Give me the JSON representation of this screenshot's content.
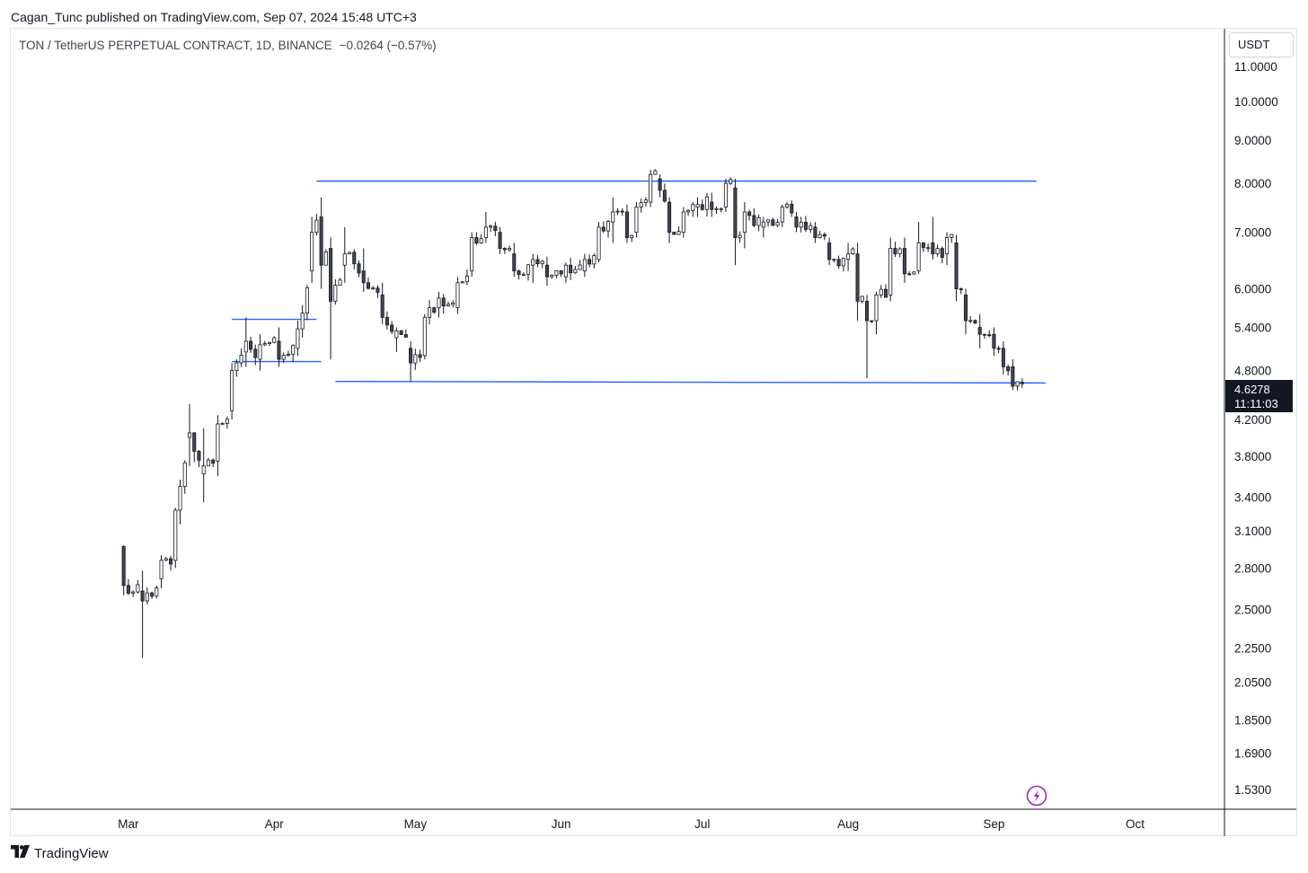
{
  "header": {
    "published_by": "Cagan_Tunc published on TradingView.com, Sep 07, 2024 15:48 UTC+3"
  },
  "symbol": {
    "title": "TON / TetherUS PERPETUAL CONTRACT, 1D, BINANCE",
    "change": "−0.0264 (−0.57%)"
  },
  "currency_label": "USDT",
  "last_price": {
    "value": "4.6278",
    "countdown": "11:11:03"
  },
  "footer": {
    "brand": "TradingView"
  },
  "colors": {
    "candle_up": "#ffffff",
    "candle_down": "#434651",
    "candle_border": "#131722",
    "trendline": "#2962ff",
    "badge_bg": "#131722",
    "flash_icon": "#9c27b0"
  },
  "icons": [
    "tradingview-logo-icon",
    "flash-icon"
  ],
  "chart_data": {
    "type": "candlestick",
    "title": "TON / TetherUS PERPETUAL CONTRACT, 1D, BINANCE",
    "y_scale": "log",
    "ylim": [
      1.45,
      12.2
    ],
    "y_ticks": [
      11.0,
      10.0,
      9.0,
      8.0,
      7.0,
      6.0,
      5.4,
      4.8,
      4.2,
      3.8,
      3.4,
      3.1,
      2.8,
      2.5,
      2.25,
      2.05,
      1.85,
      1.69,
      1.53
    ],
    "y_tick_labels": [
      "11.0000",
      "10.0000",
      "9.0000",
      "8.0000",
      "7.0000",
      "6.0000",
      "5.4000",
      "4.8000",
      "4.2000",
      "3.8000",
      "3.4000",
      "3.1000",
      "2.8000",
      "2.5000",
      "2.2500",
      "2.0500",
      "1.8500",
      "1.6900",
      "1.5300"
    ],
    "x_range": [
      "2024-02-05",
      "2024-10-20"
    ],
    "x_ticks": [
      {
        "date": "2024-03-01",
        "label": "Mar"
      },
      {
        "date": "2024-04-01",
        "label": "Apr"
      },
      {
        "date": "2024-05-01",
        "label": "May"
      },
      {
        "date": "2024-06-01",
        "label": "Jun"
      },
      {
        "date": "2024-07-01",
        "label": "Jul"
      },
      {
        "date": "2024-08-01",
        "label": "Aug"
      },
      {
        "date": "2024-09-01",
        "label": "Sep"
      },
      {
        "date": "2024-10-01",
        "label": "Oct"
      }
    ],
    "anchors": [
      {
        "date": "2024-02-29",
        "o": 2.97,
        "h": 2.98,
        "l": 2.6,
        "c": 2.67
      },
      {
        "date": "2024-03-04",
        "o": 2.63,
        "h": 2.78,
        "l": 2.19,
        "c": 2.56
      },
      {
        "date": "2024-03-08",
        "o": 2.72,
        "h": 2.9,
        "l": 2.65,
        "c": 2.86
      },
      {
        "date": "2024-03-11",
        "o": 2.86,
        "h": 3.3,
        "l": 2.8,
        "c": 3.28
      },
      {
        "date": "2024-03-14",
        "o": 4.0,
        "h": 4.38,
        "l": 3.7,
        "c": 4.05
      },
      {
        "date": "2024-03-17",
        "o": 3.62,
        "h": 4.1,
        "l": 3.35,
        "c": 3.7
      },
      {
        "date": "2024-03-20",
        "o": 3.75,
        "h": 4.25,
        "l": 3.6,
        "c": 4.15
      },
      {
        "date": "2024-03-23",
        "o": 4.3,
        "h": 4.9,
        "l": 4.2,
        "c": 4.8
      },
      {
        "date": "2024-03-26",
        "o": 5.05,
        "h": 5.55,
        "l": 4.85,
        "c": 5.2
      },
      {
        "date": "2024-03-29",
        "o": 4.95,
        "h": 5.3,
        "l": 4.8,
        "c": 5.15
      },
      {
        "date": "2024-04-02",
        "o": 5.2,
        "h": 5.4,
        "l": 4.85,
        "c": 4.95
      },
      {
        "date": "2024-04-06",
        "o": 5.1,
        "h": 5.5,
        "l": 5.0,
        "c": 5.38
      },
      {
        "date": "2024-04-09",
        "o": 6.3,
        "h": 7.3,
        "l": 6.1,
        "c": 7.0
      },
      {
        "date": "2024-04-11",
        "o": 7.3,
        "h": 7.7,
        "l": 6.0,
        "c": 6.4
      },
      {
        "date": "2024-04-13",
        "o": 6.7,
        "h": 6.9,
        "l": 4.95,
        "c": 5.8
      },
      {
        "date": "2024-04-16",
        "o": 6.4,
        "h": 7.1,
        "l": 6.1,
        "c": 6.6
      },
      {
        "date": "2024-04-20",
        "o": 6.3,
        "h": 6.7,
        "l": 5.95,
        "c": 6.1
      },
      {
        "date": "2024-04-24",
        "o": 5.9,
        "h": 6.1,
        "l": 5.45,
        "c": 5.55
      },
      {
        "date": "2024-04-27",
        "o": 5.25,
        "h": 5.4,
        "l": 5.05,
        "c": 5.35
      },
      {
        "date": "2024-04-30",
        "o": 5.1,
        "h": 5.2,
        "l": 4.66,
        "c": 4.9
      },
      {
        "date": "2024-05-03",
        "o": 5.0,
        "h": 5.6,
        "l": 4.95,
        "c": 5.55
      },
      {
        "date": "2024-05-06",
        "o": 5.7,
        "h": 5.95,
        "l": 5.55,
        "c": 5.85
      },
      {
        "date": "2024-05-10",
        "o": 5.7,
        "h": 6.2,
        "l": 5.6,
        "c": 6.1
      },
      {
        "date": "2024-05-13",
        "o": 6.3,
        "h": 7.0,
        "l": 6.2,
        "c": 6.9
      },
      {
        "date": "2024-05-16",
        "o": 6.9,
        "h": 7.4,
        "l": 6.8,
        "c": 7.1
      },
      {
        "date": "2024-05-19",
        "o": 7.0,
        "h": 7.1,
        "l": 6.6,
        "c": 6.7
      },
      {
        "date": "2024-05-22",
        "o": 6.6,
        "h": 6.8,
        "l": 6.2,
        "c": 6.3
      },
      {
        "date": "2024-05-26",
        "o": 6.4,
        "h": 6.6,
        "l": 6.1,
        "c": 6.5
      },
      {
        "date": "2024-05-29",
        "o": 6.4,
        "h": 6.55,
        "l": 6.05,
        "c": 6.2
      },
      {
        "date": "2024-06-02",
        "o": 6.2,
        "h": 6.45,
        "l": 6.1,
        "c": 6.4
      },
      {
        "date": "2024-06-06",
        "o": 6.3,
        "h": 6.6,
        "l": 6.2,
        "c": 6.5
      },
      {
        "date": "2024-06-09",
        "o": 6.5,
        "h": 7.2,
        "l": 6.45,
        "c": 7.1
      },
      {
        "date": "2024-06-12",
        "o": 7.2,
        "h": 7.7,
        "l": 6.8,
        "c": 7.4
      },
      {
        "date": "2024-06-15",
        "o": 7.4,
        "h": 7.55,
        "l": 6.8,
        "c": 6.9
      },
      {
        "date": "2024-06-17",
        "o": 7.0,
        "h": 7.6,
        "l": 6.9,
        "c": 7.5
      },
      {
        "date": "2024-06-20",
        "o": 7.6,
        "h": 8.3,
        "l": 7.5,
        "c": 8.2
      },
      {
        "date": "2024-06-22",
        "o": 8.1,
        "h": 8.2,
        "l": 7.7,
        "c": 7.85
      },
      {
        "date": "2024-06-24",
        "o": 7.6,
        "h": 7.7,
        "l": 6.8,
        "c": 7.0
      },
      {
        "date": "2024-06-27",
        "o": 7.0,
        "h": 7.5,
        "l": 6.9,
        "c": 7.4
      },
      {
        "date": "2024-06-30",
        "o": 7.5,
        "h": 7.7,
        "l": 7.3,
        "c": 7.55
      },
      {
        "date": "2024-07-03",
        "o": 7.6,
        "h": 7.8,
        "l": 7.3,
        "c": 7.45
      },
      {
        "date": "2024-07-06",
        "o": 7.5,
        "h": 8.1,
        "l": 7.4,
        "c": 8.0
      },
      {
        "date": "2024-07-08",
        "o": 7.9,
        "h": 8.1,
        "l": 6.4,
        "c": 6.9
      },
      {
        "date": "2024-07-10",
        "o": 7.0,
        "h": 7.6,
        "l": 6.7,
        "c": 7.4
      },
      {
        "date": "2024-07-14",
        "o": 7.1,
        "h": 7.3,
        "l": 6.9,
        "c": 7.2
      },
      {
        "date": "2024-07-18",
        "o": 7.2,
        "h": 7.55,
        "l": 7.1,
        "c": 7.5
      },
      {
        "date": "2024-07-21",
        "o": 7.3,
        "h": 7.4,
        "l": 7.0,
        "c": 7.1
      },
      {
        "date": "2024-07-25",
        "o": 7.1,
        "h": 7.2,
        "l": 6.8,
        "c": 6.9
      },
      {
        "date": "2024-07-28",
        "o": 6.8,
        "h": 6.9,
        "l": 6.4,
        "c": 6.5
      },
      {
        "date": "2024-08-01",
        "o": 6.5,
        "h": 6.8,
        "l": 6.3,
        "c": 6.6
      },
      {
        "date": "2024-08-03",
        "o": 6.6,
        "h": 6.8,
        "l": 5.5,
        "c": 5.8
      },
      {
        "date": "2024-08-05",
        "o": 5.8,
        "h": 5.9,
        "l": 4.7,
        "c": 5.5
      },
      {
        "date": "2024-08-07",
        "o": 5.5,
        "h": 5.95,
        "l": 5.3,
        "c": 5.9
      },
      {
        "date": "2024-08-10",
        "o": 5.9,
        "h": 6.9,
        "l": 5.8,
        "c": 6.7
      },
      {
        "date": "2024-08-13",
        "o": 6.7,
        "h": 6.9,
        "l": 6.1,
        "c": 6.25
      },
      {
        "date": "2024-08-16",
        "o": 6.3,
        "h": 7.2,
        "l": 6.25,
        "c": 6.8
      },
      {
        "date": "2024-08-19",
        "o": 6.8,
        "h": 7.3,
        "l": 6.5,
        "c": 6.6
      },
      {
        "date": "2024-08-22",
        "o": 6.6,
        "h": 7.0,
        "l": 6.4,
        "c": 6.9
      },
      {
        "date": "2024-08-24",
        "o": 6.8,
        "h": 6.95,
        "l": 5.8,
        "c": 6.0
      },
      {
        "date": "2024-08-26",
        "o": 5.9,
        "h": 6.0,
        "l": 5.3,
        "c": 5.5
      },
      {
        "date": "2024-08-29",
        "o": 5.4,
        "h": 5.6,
        "l": 5.1,
        "c": 5.3
      },
      {
        "date": "2024-09-01",
        "o": 5.3,
        "h": 5.4,
        "l": 5.0,
        "c": 5.1
      },
      {
        "date": "2024-09-03",
        "o": 5.1,
        "h": 5.2,
        "l": 4.75,
        "c": 4.85
      },
      {
        "date": "2024-09-05",
        "o": 4.85,
        "h": 4.95,
        "l": 4.55,
        "c": 4.6
      },
      {
        "date": "2024-09-07",
        "o": 4.65,
        "h": 4.7,
        "l": 4.58,
        "c": 4.63
      }
    ],
    "trendlines": [
      {
        "from": {
          "date": "2024-04-10",
          "price": 8.05
        },
        "to": {
          "date": "2024-09-10",
          "price": 8.05
        }
      },
      {
        "from": {
          "date": "2024-04-14",
          "price": 4.66
        },
        "to": {
          "date": "2024-09-12",
          "price": 4.64
        }
      },
      {
        "from": {
          "date": "2024-03-23",
          "price": 5.52
        },
        "to": {
          "date": "2024-04-10",
          "price": 5.52
        }
      },
      {
        "from": {
          "date": "2024-03-23",
          "price": 4.92
        },
        "to": {
          "date": "2024-04-11",
          "price": 4.92
        }
      }
    ]
  }
}
